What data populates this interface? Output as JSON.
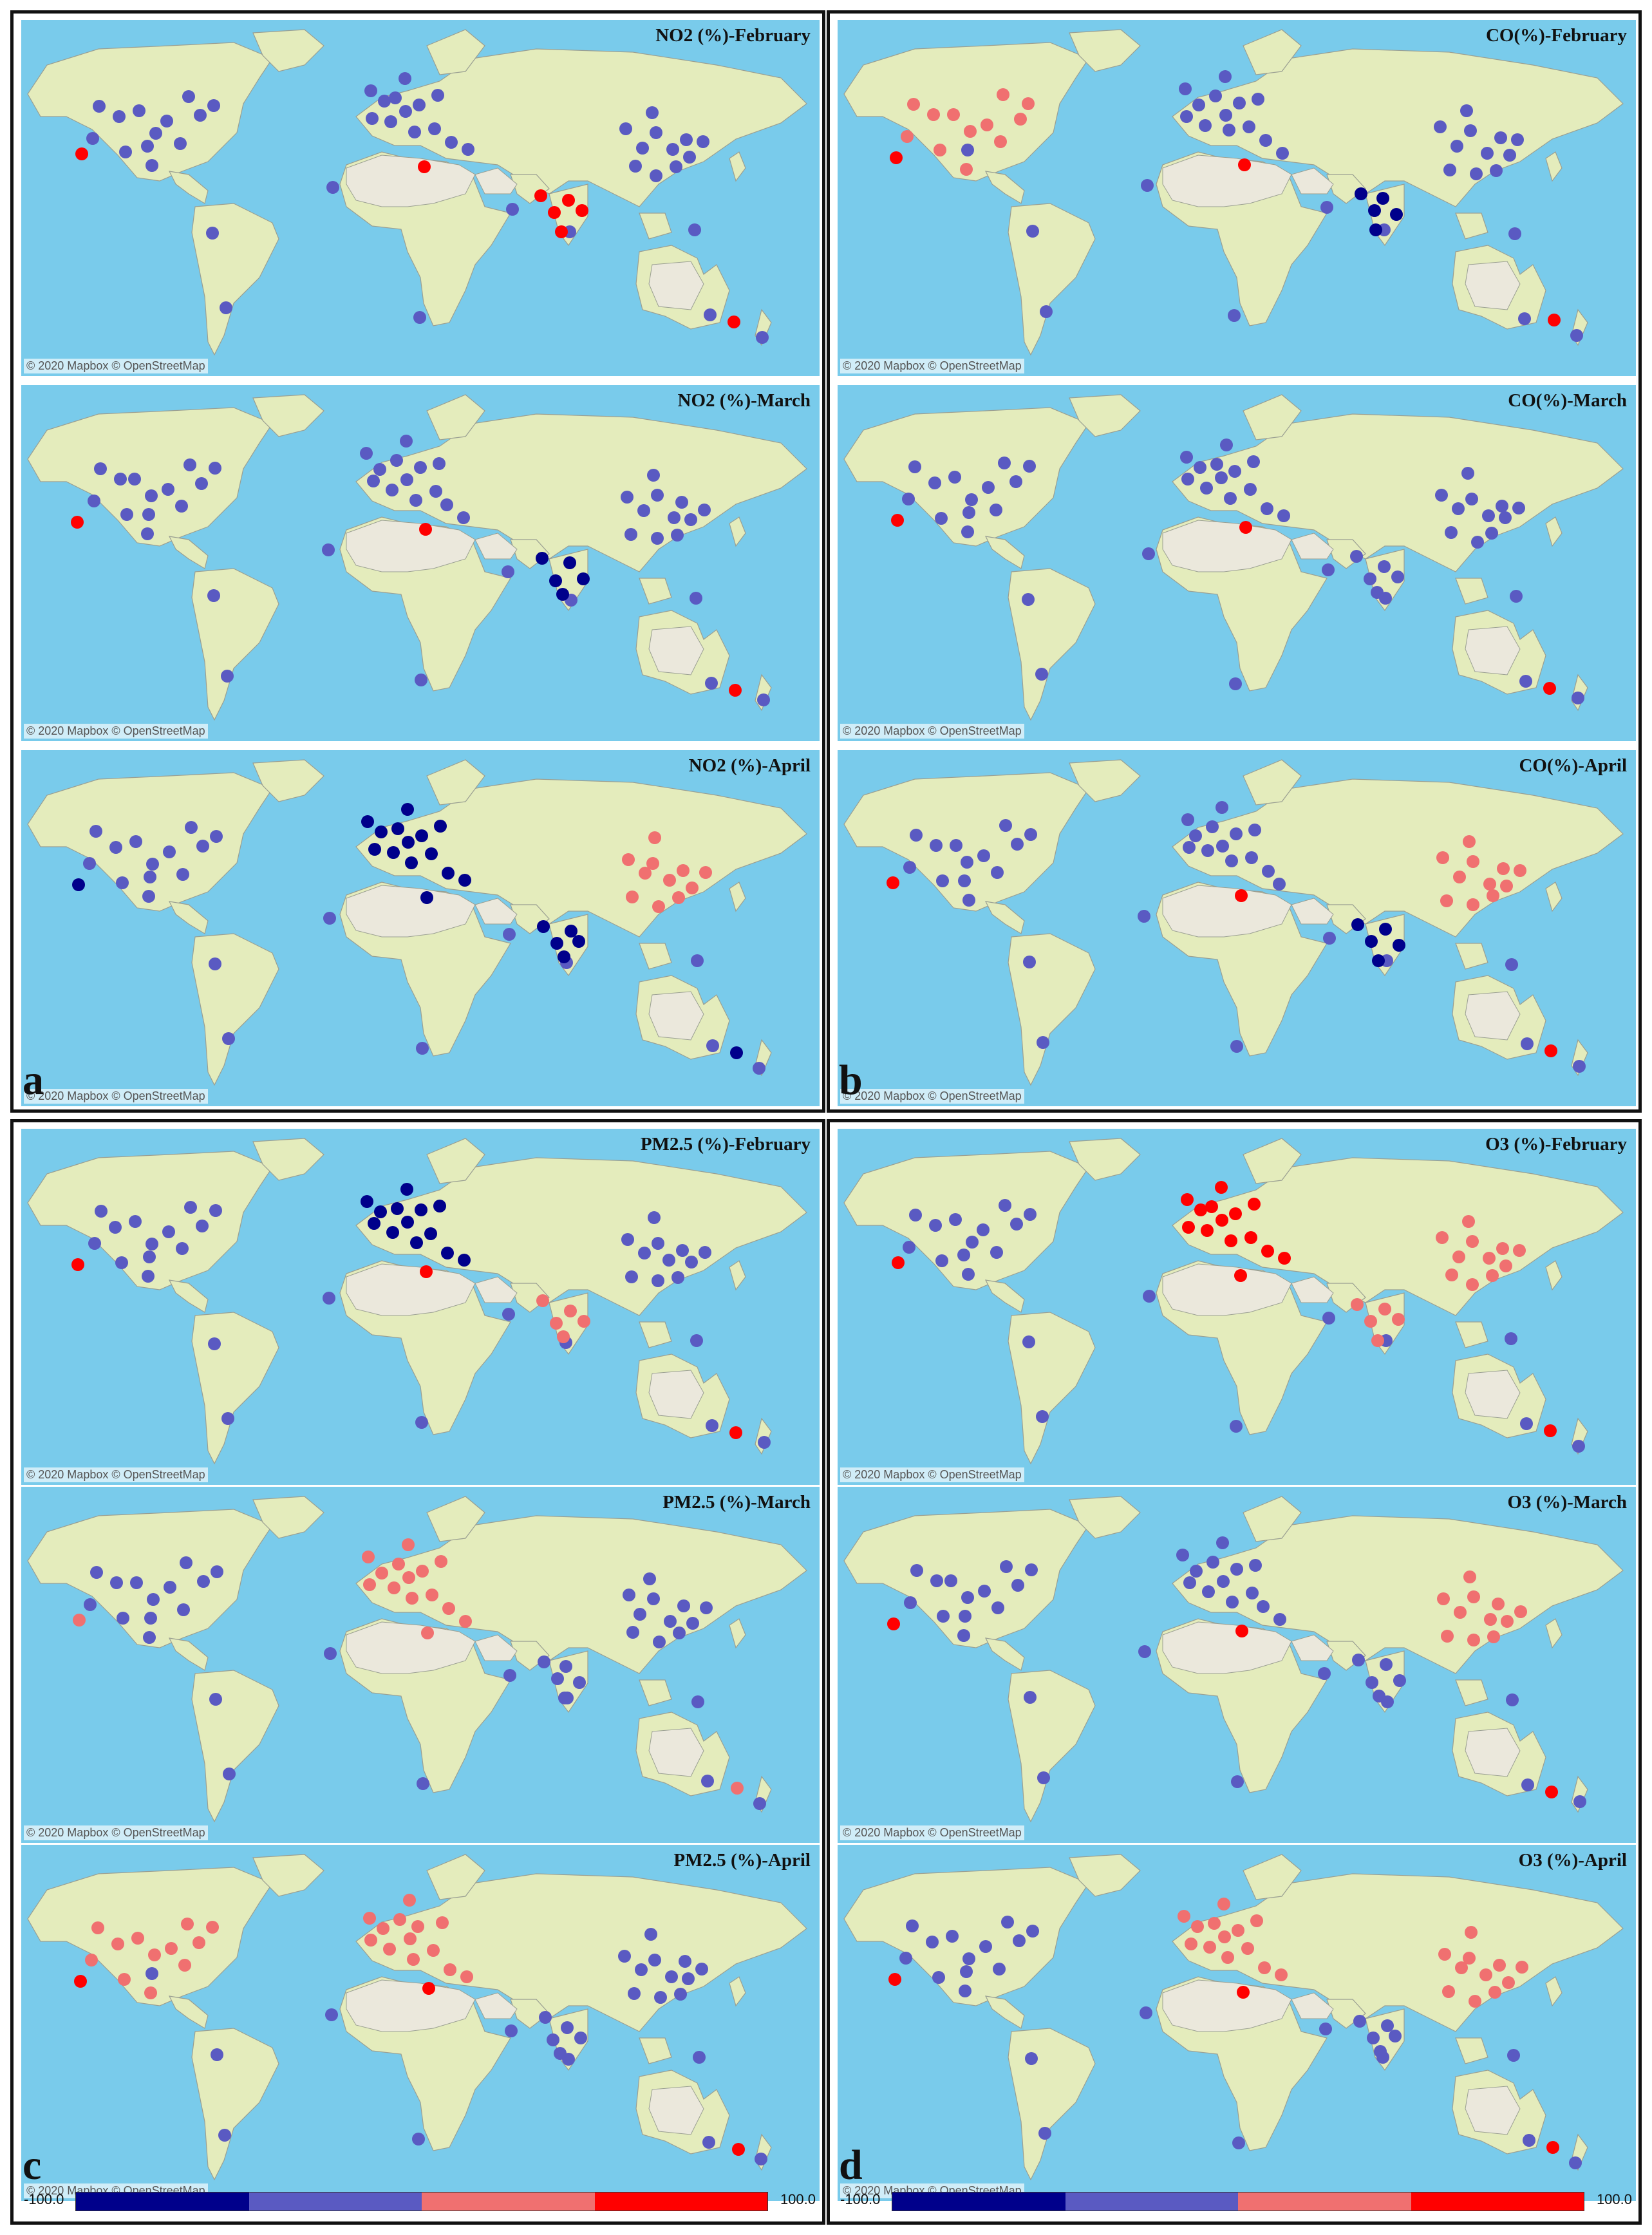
{
  "attribution": "© 2020 Mapbox © OpenStreetMap",
  "colors": {
    "ocean": "#79cbeb",
    "land": "#e4ecbc",
    "desert": "#ebe8dc",
    "border": "#9a9f92",
    "dark_blue": "#00008b",
    "blue": "#5a5ac2",
    "light_red": "#f07070",
    "red": "#ff0000"
  },
  "legend": {
    "min_label": "-100.0",
    "max_label": "100.0",
    "bins": [
      "#00008b",
      "#5a5ac2",
      "#f07070",
      "#ff0000"
    ]
  },
  "panels": [
    {
      "letter": "a",
      "maps": [
        {
          "title": "NO2 (%)-February",
          "dots": {
            "world": "blue",
            "europe": "blue",
            "usa": "blue",
            "east_asia": "blue",
            "south_asia": "red",
            "accent": "red"
          }
        },
        {
          "title": "NO2 (%)-March",
          "dots": {
            "world": "blue",
            "europe": "blue",
            "usa": "blue",
            "east_asia": "blue",
            "south_asia": "dark_blue",
            "accent": "red"
          }
        },
        {
          "title": "NO2 (%)-April",
          "dots": {
            "world": "blue",
            "europe": "dark_blue",
            "usa": "blue",
            "east_asia": "light_red",
            "south_asia": "dark_blue",
            "accent": "dark_blue"
          }
        }
      ]
    },
    {
      "letter": "b",
      "maps": [
        {
          "title": "CO(%)-February",
          "dots": {
            "world": "blue",
            "europe": "blue",
            "usa": "light_red",
            "east_asia": "blue",
            "south_asia": "dark_blue",
            "accent": "red"
          }
        },
        {
          "title": "CO(%)-March",
          "dots": {
            "world": "blue",
            "europe": "blue",
            "usa": "blue",
            "east_asia": "blue",
            "south_asia": "blue",
            "accent": "red"
          }
        },
        {
          "title": "CO(%)-April",
          "dots": {
            "world": "blue",
            "europe": "blue",
            "usa": "blue",
            "east_asia": "light_red",
            "south_asia": "dark_blue",
            "accent": "red"
          }
        }
      ]
    },
    {
      "letter": "c",
      "maps": [
        {
          "title": "PM2.5 (%)-February",
          "dots": {
            "world": "blue",
            "europe": "dark_blue",
            "usa": "blue",
            "east_asia": "blue",
            "south_asia": "light_red",
            "accent": "red"
          }
        },
        {
          "title": "PM2.5 (%)-March",
          "dots": {
            "world": "blue",
            "europe": "light_red",
            "usa": "blue",
            "east_asia": "blue",
            "south_asia": "blue",
            "accent": "light_red"
          }
        },
        {
          "title": "PM2.5 (%)-April",
          "dots": {
            "world": "blue",
            "europe": "light_red",
            "usa": "light_red",
            "east_asia": "blue",
            "south_asia": "blue",
            "accent": "red"
          }
        }
      ]
    },
    {
      "letter": "d",
      "maps": [
        {
          "title": "O3 (%)-February",
          "dots": {
            "world": "blue",
            "europe": "red",
            "usa": "blue",
            "east_asia": "light_red",
            "south_asia": "light_red",
            "accent": "red"
          }
        },
        {
          "title": "O3 (%)-March",
          "dots": {
            "world": "blue",
            "europe": "blue",
            "usa": "blue",
            "east_asia": "light_red",
            "south_asia": "blue",
            "accent": "red"
          }
        },
        {
          "title": "O3 (%)-April",
          "dots": {
            "world": "blue",
            "europe": "light_red",
            "usa": "blue",
            "east_asia": "light_red",
            "south_asia": "blue",
            "accent": "red"
          }
        }
      ]
    }
  ]
}
